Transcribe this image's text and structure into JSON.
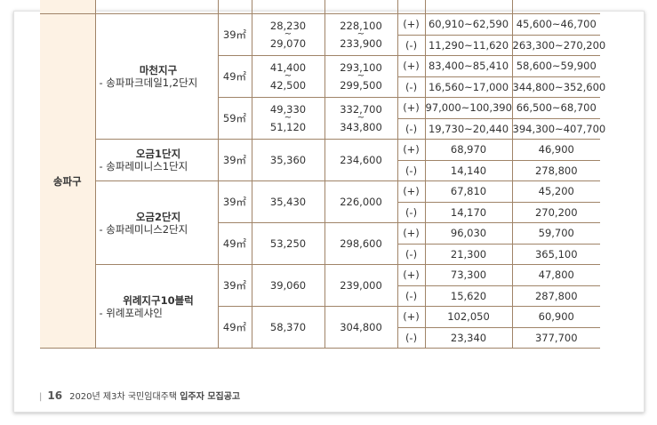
{
  "table": {
    "district": "송파구",
    "complexes": [
      {
        "name": "마천지구",
        "sub": "- 송파파크데일1,2단지",
        "areas": [
          {
            "area": "39㎡",
            "deposit": [
              "28,230",
              "~",
              "29,070"
            ],
            "rent": [
              "228,100",
              "~",
              "233,900"
            ],
            "rows": [
              [
                "(+)",
                "60,910~62,590",
                "45,600~46,700"
              ],
              [
                "(-)",
                "11,290~11,620",
                "263,300~270,200"
              ]
            ]
          },
          {
            "area": "49㎡",
            "deposit": [
              "41,400",
              "~",
              "42,500"
            ],
            "rent": [
              "293,100",
              "~",
              "299,500"
            ],
            "rows": [
              [
                "(+)",
                "83,400~85,410",
                "58,600~59,900"
              ],
              [
                "(-)",
                "16,560~17,000",
                "344,800~352,600"
              ]
            ]
          },
          {
            "area": "59㎡",
            "deposit": [
              "49,330",
              "~",
              "51,120"
            ],
            "rent": [
              "332,700",
              "~",
              "343,800"
            ],
            "rows": [
              [
                "(+)",
                "97,000~100,390",
                "66,500~68,700"
              ],
              [
                "(-)",
                "19,730~20,440",
                "394,300~407,700"
              ]
            ]
          }
        ]
      },
      {
        "name": "오금1단지",
        "sub": "- 송파레미니스1단지",
        "areas": [
          {
            "area": "39㎡",
            "deposit": [
              "35,360"
            ],
            "rent": [
              "234,600"
            ],
            "rows": [
              [
                "(+)",
                "68,970",
                "46,900"
              ],
              [
                "(-)",
                "14,140",
                "278,800"
              ]
            ]
          }
        ]
      },
      {
        "name": "오금2단지",
        "sub": "- 송파레미니스2단지",
        "areas": [
          {
            "area": "39㎡",
            "deposit": [
              "35,430"
            ],
            "rent": [
              "226,000"
            ],
            "rows": [
              [
                "(+)",
                "67,810",
                "45,200"
              ],
              [
                "(-)",
                "14,170",
                "270,200"
              ]
            ]
          },
          {
            "area": "49㎡",
            "deposit": [
              "53,250"
            ],
            "rent": [
              "298,600"
            ],
            "rows": [
              [
                "(+)",
                "96,030",
                "59,700"
              ],
              [
                "(-)",
                "21,300",
                "365,100"
              ]
            ]
          }
        ]
      },
      {
        "name": "위례지구10블럭",
        "sub": "- 위례포레샤인",
        "areas": [
          {
            "area": "39㎡",
            "deposit": [
              "39,060"
            ],
            "rent": [
              "239,000"
            ],
            "rows": [
              [
                "(+)",
                "73,300",
                "47,800"
              ],
              [
                "(-)",
                "15,620",
                "287,800"
              ]
            ]
          },
          {
            "area": "49㎡",
            "deposit": [
              "58,370"
            ],
            "rent": [
              "304,800"
            ],
            "rows": [
              [
                "(+)",
                "102,050",
                "60,900"
              ],
              [
                "(-)",
                "23,340",
                "377,700"
              ]
            ]
          }
        ]
      }
    ]
  },
  "footer": {
    "page": "16",
    "text": "2020년 제3차 국민임대주택 ",
    "bold": "입주자 모집공고"
  }
}
